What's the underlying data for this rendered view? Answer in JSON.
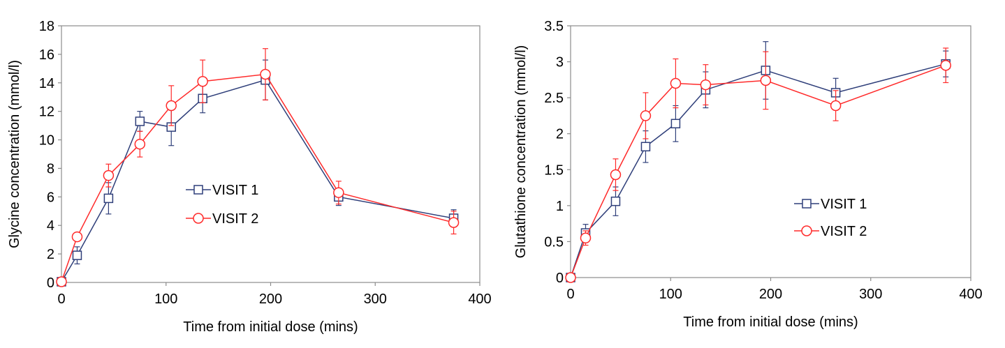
{
  "chart_data": [
    {
      "type": "line",
      "title": "",
      "xlabel": "Time from initial dose (mins)",
      "ylabel": "Glycine concentration (mmol/l)",
      "xlim": [
        0,
        400
      ],
      "ylim": [
        0,
        18
      ],
      "xticks": [
        0,
        100,
        200,
        300,
        400
      ],
      "yticks": [
        0,
        2,
        4,
        6,
        8,
        10,
        12,
        14,
        16,
        18
      ],
      "xtick_labels": [
        "0",
        "100",
        "200",
        "300",
        "400"
      ],
      "ytick_labels": [
        "0",
        "2",
        "4",
        "6",
        "8",
        "10",
        "12",
        "14",
        "16",
        "18"
      ],
      "grid": false,
      "legend_position": "center",
      "series": [
        {
          "name": "VISIT 1",
          "marker": "square",
          "color": "#2f3f7a",
          "x": [
            0,
            15,
            45,
            75,
            105,
            135,
            195,
            265,
            375
          ],
          "y": [
            0.05,
            1.9,
            5.9,
            11.3,
            10.9,
            12.9,
            14.2,
            6.0,
            4.5
          ],
          "err": [
            0,
            0.6,
            1.1,
            0.7,
            1.3,
            1.0,
            1.4,
            0.6,
            0.6
          ]
        },
        {
          "name": "VISIT 2",
          "marker": "circle",
          "color": "#ff2a2a",
          "x": [
            0,
            15,
            45,
            75,
            105,
            135,
            195,
            265,
            375
          ],
          "y": [
            0.05,
            3.2,
            7.5,
            9.7,
            12.4,
            14.1,
            14.6,
            6.3,
            4.2
          ],
          "err": [
            0,
            0.3,
            0.8,
            0.9,
            1.4,
            1.5,
            1.8,
            0.8,
            0.8
          ]
        }
      ]
    },
    {
      "type": "line",
      "title": "",
      "xlabel": "Time from initial dose (mins)",
      "ylabel": "Glutathione concentration (mmol/l)",
      "xlim": [
        0,
        400
      ],
      "ylim": [
        0,
        3.5
      ],
      "xticks": [
        0,
        100,
        200,
        300,
        400
      ],
      "yticks": [
        0,
        0.5,
        1,
        1.5,
        2,
        2.5,
        3,
        3.5
      ],
      "xtick_labels": [
        "0",
        "100",
        "200",
        "300",
        "400"
      ],
      "ytick_labels": [
        "0",
        "0.5",
        "1",
        "1.5",
        "2",
        "2.5",
        "3",
        "3.5"
      ],
      "grid": false,
      "legend_position": "bottom-right",
      "series": [
        {
          "name": "VISIT 1",
          "marker": "square",
          "color": "#2f3f7a",
          "x": [
            0,
            15,
            45,
            75,
            105,
            135,
            195,
            265,
            375
          ],
          "y": [
            0.0,
            0.62,
            1.06,
            1.82,
            2.14,
            2.61,
            2.88,
            2.57,
            2.97
          ],
          "err": [
            0,
            0.12,
            0.2,
            0.22,
            0.25,
            0.25,
            0.4,
            0.2,
            0.18
          ]
        },
        {
          "name": "VISIT 2",
          "marker": "circle",
          "color": "#ff2a2a",
          "x": [
            0,
            15,
            45,
            75,
            105,
            135,
            195,
            265,
            375
          ],
          "y": [
            0.0,
            0.55,
            1.43,
            2.25,
            2.7,
            2.68,
            2.74,
            2.39,
            2.95
          ],
          "err": [
            0,
            0.1,
            0.22,
            0.32,
            0.34,
            0.28,
            0.4,
            0.21,
            0.24
          ]
        }
      ]
    }
  ]
}
